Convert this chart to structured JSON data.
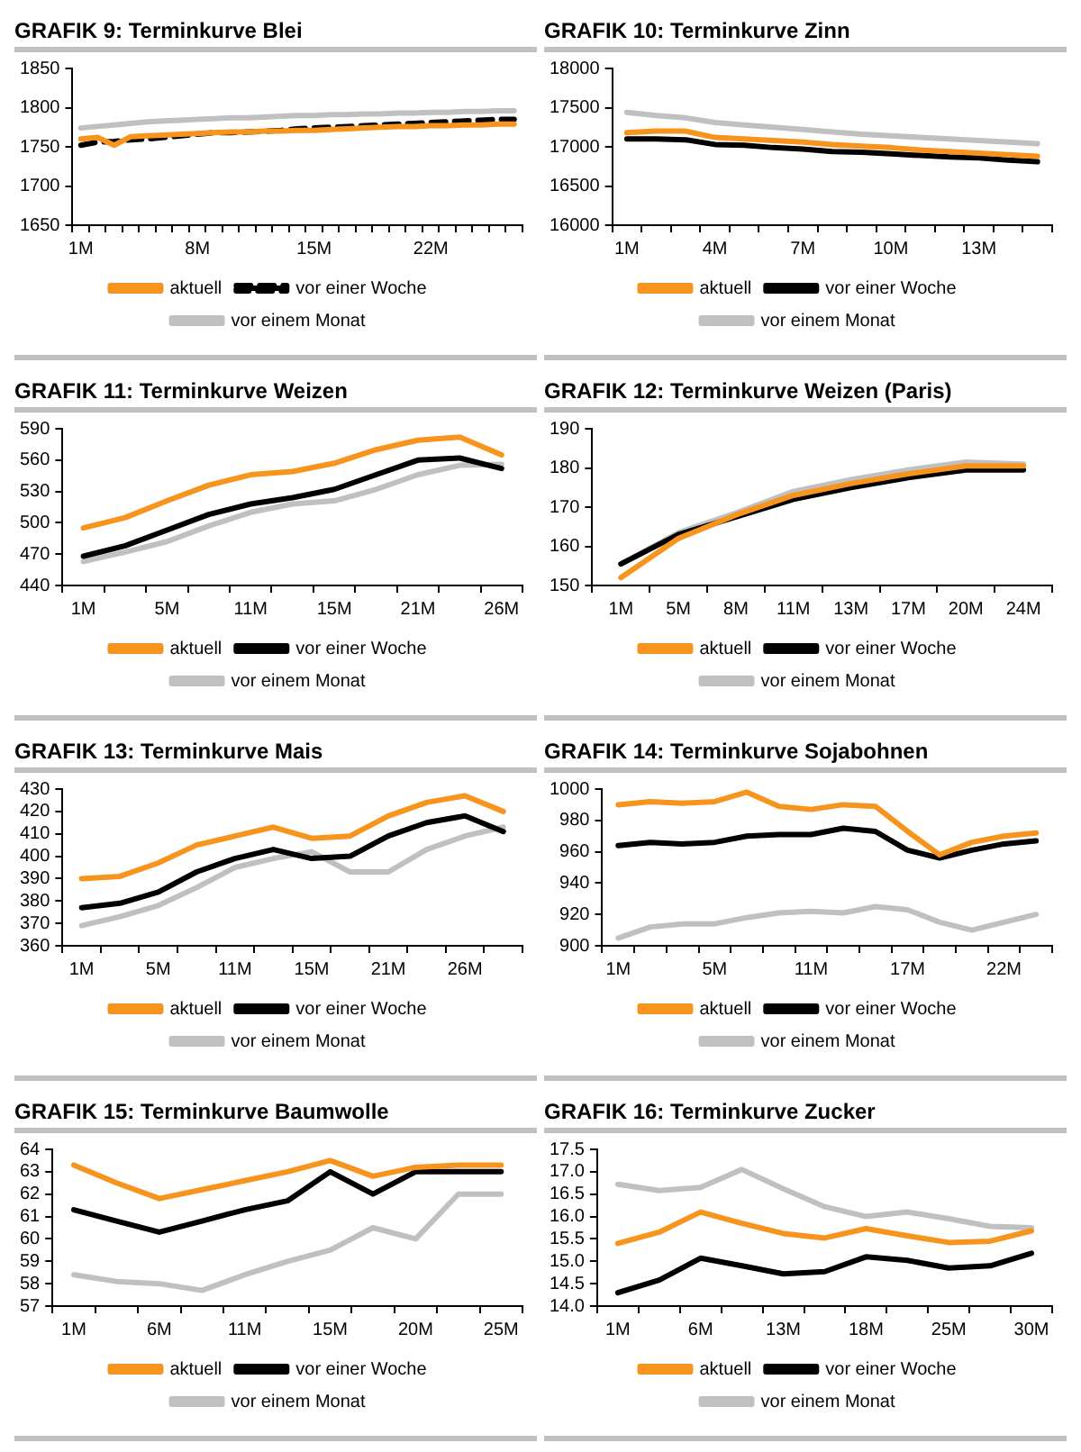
{
  "chart_data": [
    {
      "type": "line",
      "title": "GRAFIK 9: Terminkurve Blei",
      "categories": [
        "1M",
        null,
        null,
        null,
        null,
        null,
        null,
        "8M",
        null,
        null,
        null,
        null,
        null,
        null,
        "15M",
        null,
        null,
        null,
        null,
        null,
        null,
        "22M",
        null,
        null,
        null,
        null,
        null
      ],
      "ylim": [
        1650,
        1850
      ],
      "yticks": [
        1650,
        1700,
        1750,
        1800,
        1850
      ],
      "grid": false,
      "legend": "bottom",
      "series": [
        {
          "name": "aktuell",
          "color": "#f7941d",
          "values": [
            1760,
            1762,
            1752,
            1763,
            1764,
            1765,
            1766,
            1767,
            1768,
            1769,
            1769,
            1770,
            1770,
            1771,
            1771,
            1772,
            1773,
            1774,
            1775,
            1776,
            1776,
            1777,
            1777,
            1778,
            1778,
            1779,
            1779
          ]
        },
        {
          "name": "vor einer Woche",
          "color": "#000000",
          "line_style": "dashed",
          "values": [
            1752,
            1756,
            1757,
            1759,
            1760,
            1762,
            1764,
            1766,
            1768,
            1768,
            1769,
            1770,
            1771,
            1773,
            1774,
            1775,
            1776,
            1777,
            1778,
            1779,
            1780,
            1781,
            1782,
            1783,
            1784,
            1785,
            1785
          ]
        },
        {
          "name": "vor einem Monat",
          "color": "#c0c0c0",
          "values": [
            1774,
            1776,
            1778,
            1780,
            1782,
            1783,
            1784,
            1785,
            1786,
            1787,
            1787,
            1788,
            1789,
            1790,
            1790,
            1791,
            1791,
            1792,
            1792,
            1793,
            1793,
            1794,
            1794,
            1795,
            1795,
            1796,
            1796
          ]
        }
      ]
    },
    {
      "type": "line",
      "title": "GRAFIK 10: Terminkurve Zinn",
      "categories": [
        "1M",
        null,
        null,
        "4M",
        null,
        null,
        "7M",
        null,
        null,
        "10M",
        null,
        null,
        "13M",
        null,
        null
      ],
      "ylim": [
        16000,
        18000
      ],
      "yticks": [
        16000,
        16500,
        17000,
        17500,
        18000
      ],
      "grid": false,
      "legend": "bottom",
      "series": [
        {
          "name": "aktuell",
          "color": "#f7941d",
          "values": [
            17180,
            17200,
            17200,
            17120,
            17100,
            17080,
            17060,
            17030,
            17010,
            16990,
            16960,
            16940,
            16920,
            16900,
            16880
          ]
        },
        {
          "name": "vor einer Woche",
          "color": "#000000",
          "values": [
            17100,
            17100,
            17090,
            17030,
            17020,
            16990,
            16970,
            16940,
            16930,
            16910,
            16890,
            16870,
            16860,
            16830,
            16810
          ]
        },
        {
          "name": "vor einem Monat",
          "color": "#c0c0c0",
          "values": [
            17440,
            17400,
            17370,
            17310,
            17280,
            17250,
            17220,
            17190,
            17160,
            17140,
            17120,
            17100,
            17080,
            17060,
            17040
          ]
        }
      ]
    },
    {
      "type": "line",
      "title": "GRAFIK 11: Terminkurve Weizen",
      "categories": [
        "1M",
        null,
        "5M",
        null,
        "11M",
        null,
        "15M",
        null,
        "21M",
        null,
        "26M"
      ],
      "ylim": [
        440,
        590
      ],
      "yticks": [
        440,
        470,
        500,
        530,
        560,
        590
      ],
      "grid": false,
      "legend": "bottom",
      "series": [
        {
          "name": "aktuell",
          "color": "#f7941d",
          "values": [
            495,
            505,
            521,
            536,
            546,
            549,
            557,
            570,
            579,
            582,
            565
          ]
        },
        {
          "name": "vor einer Woche",
          "color": "#000000",
          "values": [
            468,
            478,
            493,
            508,
            518,
            524,
            532,
            546,
            560,
            562,
            552
          ]
        },
        {
          "name": "vor einem Monat",
          "color": "#c0c0c0",
          "values": [
            463,
            472,
            482,
            497,
            510,
            518,
            521,
            532,
            546,
            555,
            556
          ]
        }
      ]
    },
    {
      "type": "line",
      "title": "GRAFIK 12: Terminkurve Weizen (Paris)",
      "categories": [
        "1M",
        "5M",
        "8M",
        "11M",
        "13M",
        "17M",
        "20M",
        "24M"
      ],
      "ylim": [
        150,
        190
      ],
      "yticks": [
        150,
        160,
        170,
        180,
        190
      ],
      "grid": false,
      "legend": "bottom",
      "series": [
        {
          "name": "aktuell",
          "color": "#f7941d",
          "values": [
            152,
            162,
            168,
            173,
            176,
            178.5,
            180.5,
            180.5
          ]
        },
        {
          "name": "vor einer Woche",
          "color": "#000000",
          "values": [
            155.5,
            163,
            167.5,
            172,
            175,
            177.5,
            179.5,
            179.5
          ]
        },
        {
          "name": "vor einem Monat",
          "color": "#c0c0c0",
          "values": [
            155.5,
            163.5,
            168.5,
            174,
            177,
            179.5,
            181.5,
            181
          ]
        }
      ]
    },
    {
      "type": "line",
      "title": "GRAFIK 13: Terminkurve Mais",
      "categories": [
        "1M",
        null,
        "5M",
        null,
        "11M",
        null,
        "15M",
        null,
        "21M",
        null,
        "26M",
        null
      ],
      "ylim": [
        360,
        430
      ],
      "yticks": [
        360,
        370,
        380,
        390,
        400,
        410,
        420,
        430
      ],
      "grid": false,
      "legend": "bottom",
      "series": [
        {
          "name": "aktuell",
          "color": "#f7941d",
          "values": [
            390,
            391,
            397,
            405,
            409,
            413,
            408,
            409,
            418,
            424,
            427,
            420
          ]
        },
        {
          "name": "vor einer Woche",
          "color": "#000000",
          "values": [
            377,
            379,
            384,
            393,
            399,
            403,
            399,
            400,
            409,
            415,
            418,
            411
          ]
        },
        {
          "name": "vor einem Monat",
          "color": "#c0c0c0",
          "values": [
            369,
            373,
            378,
            386,
            395,
            399,
            402,
            393,
            393,
            403,
            409,
            413
          ]
        }
      ]
    },
    {
      "type": "line",
      "title": "GRAFIK 14: Terminkurve Sojabohnen",
      "categories": [
        "1M",
        null,
        null,
        "5M",
        null,
        null,
        "11M",
        null,
        null,
        "17M",
        null,
        null,
        "22M",
        null
      ],
      "ylim": [
        900,
        1000
      ],
      "yticks": [
        900,
        920,
        940,
        960,
        980,
        1000
      ],
      "grid": false,
      "legend": "bottom",
      "series": [
        {
          "name": "aktuell",
          "color": "#f7941d",
          "values": [
            990,
            992,
            991,
            992,
            998,
            989,
            987,
            990,
            989,
            973,
            958,
            966,
            970,
            972
          ]
        },
        {
          "name": "vor einer Woche",
          "color": "#000000",
          "values": [
            964,
            966,
            965,
            966,
            970,
            971,
            971,
            975,
            973,
            961,
            956,
            961,
            965,
            967
          ]
        },
        {
          "name": "vor einem Monat",
          "color": "#c0c0c0",
          "values": [
            905,
            912,
            914,
            914,
            918,
            921,
            922,
            921,
            925,
            923,
            915,
            910,
            915,
            920
          ]
        }
      ]
    },
    {
      "type": "line",
      "title": "GRAFIK 15: Terminkurve Baumwolle",
      "categories": [
        "1M",
        null,
        "6M",
        null,
        "11M",
        null,
        "15M",
        null,
        "20M",
        null,
        "25M"
      ],
      "ylim": [
        57,
        64
      ],
      "yticks": [
        57,
        58,
        59,
        60,
        61,
        62,
        63,
        64
      ],
      "grid": false,
      "legend": "bottom",
      "series": [
        {
          "name": "aktuell",
          "color": "#f7941d",
          "values": [
            63.3,
            62.5,
            61.8,
            62.2,
            62.6,
            63.0,
            63.5,
            62.8,
            63.2,
            63.3,
            63.3
          ]
        },
        {
          "name": "vor einer Woche",
          "color": "#000000",
          "values": [
            61.3,
            60.8,
            60.3,
            60.8,
            61.3,
            61.7,
            63.0,
            62.0,
            63.0,
            63.0,
            63.0
          ]
        },
        {
          "name": "vor einem Monat",
          "color": "#c0c0c0",
          "values": [
            58.4,
            58.1,
            58.0,
            57.7,
            58.4,
            59.0,
            59.5,
            60.5,
            60.0,
            62.0,
            62.0
          ]
        }
      ]
    },
    {
      "type": "line",
      "title": "GRAFIK 16: Terminkurve Zucker",
      "categories": [
        "1M",
        null,
        "6M",
        null,
        "13M",
        null,
        "18M",
        null,
        "25M",
        null,
        "30M"
      ],
      "ylim": [
        14.0,
        17.5
      ],
      "yticks": [
        {
          "value": 14,
          "label": "14.0"
        },
        {
          "value": 14.5,
          "label": "14.5"
        },
        {
          "value": 15,
          "label": "15.0"
        },
        {
          "value": 15.5,
          "label": "15.5"
        },
        {
          "value": 16,
          "label": "16.0"
        },
        {
          "value": 16.5,
          "label": "16.5"
        },
        {
          "value": 17,
          "label": "17.0"
        },
        {
          "value": 17.5,
          "label": "17.5"
        }
      ],
      "grid": false,
      "legend": "bottom",
      "series": [
        {
          "name": "aktuell",
          "color": "#f7941d",
          "values": [
            15.4,
            15.65,
            16.1,
            15.85,
            15.62,
            15.52,
            15.73,
            15.57,
            15.42,
            15.45,
            15.68
          ]
        },
        {
          "name": "vor einer Woche",
          "color": "#000000",
          "values": [
            14.3,
            14.58,
            15.07,
            14.9,
            14.72,
            14.77,
            15.1,
            15.02,
            14.85,
            14.9,
            15.18
          ]
        },
        {
          "name": "vor einem Monat",
          "color": "#c0c0c0",
          "values": [
            16.72,
            16.58,
            16.65,
            17.05,
            16.62,
            16.22,
            16.0,
            16.1,
            15.95,
            15.78,
            15.75
          ]
        }
      ]
    }
  ]
}
